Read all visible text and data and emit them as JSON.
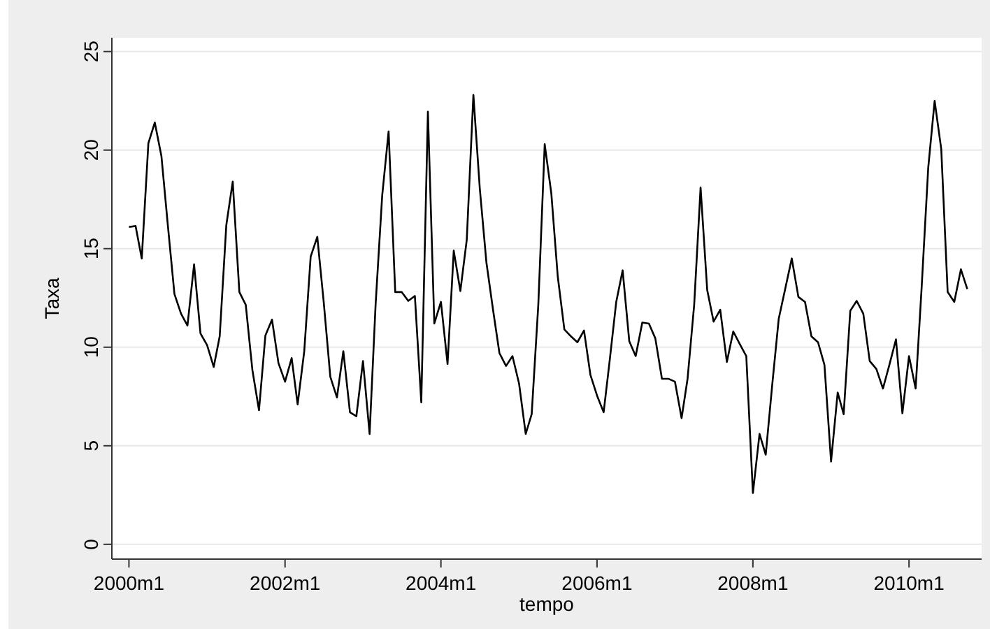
{
  "chart_data": {
    "type": "line",
    "xlabel": "tempo",
    "ylabel": "Taxa",
    "x": [
      "2000-01",
      "2000-02",
      "2000-03",
      "2000-04",
      "2000-05",
      "2000-06",
      "2000-07",
      "2000-08",
      "2000-09",
      "2000-10",
      "2000-11",
      "2000-12",
      "2001-01",
      "2001-02",
      "2001-03",
      "2001-04",
      "2001-05",
      "2001-06",
      "2001-07",
      "2001-08",
      "2001-09",
      "2001-10",
      "2001-11",
      "2001-12",
      "2002-01",
      "2002-02",
      "2002-03",
      "2002-04",
      "2002-05",
      "2002-06",
      "2002-07",
      "2002-08",
      "2002-09",
      "2002-10",
      "2002-11",
      "2002-12",
      "2003-01",
      "2003-02",
      "2003-03",
      "2003-04",
      "2003-05",
      "2003-06",
      "2003-07",
      "2003-08",
      "2003-09",
      "2003-10",
      "2003-11",
      "2003-12",
      "2004-01",
      "2004-02",
      "2004-03",
      "2004-04",
      "2004-05",
      "2004-06",
      "2004-07",
      "2004-08",
      "2004-09",
      "2004-10",
      "2004-11",
      "2004-12",
      "2005-01",
      "2005-02",
      "2005-03",
      "2005-04",
      "2005-05",
      "2005-06",
      "2005-07",
      "2005-08",
      "2005-09",
      "2005-10",
      "2005-11",
      "2005-12",
      "2006-01",
      "2006-02",
      "2006-03",
      "2006-04",
      "2006-05",
      "2006-06",
      "2006-07",
      "2006-08",
      "2006-09",
      "2006-10",
      "2006-11",
      "2006-12",
      "2007-01",
      "2007-02",
      "2007-03",
      "2007-04",
      "2007-05",
      "2007-06",
      "2007-07",
      "2007-08",
      "2007-09",
      "2007-10",
      "2007-11",
      "2007-12",
      "2008-01",
      "2008-02",
      "2008-03",
      "2008-04",
      "2008-05",
      "2008-06",
      "2008-07",
      "2008-08",
      "2008-09",
      "2008-10",
      "2008-11",
      "2008-12",
      "2009-01",
      "2009-02",
      "2009-03",
      "2009-04",
      "2009-05",
      "2009-06",
      "2009-07",
      "2009-08",
      "2009-09",
      "2009-10",
      "2009-11",
      "2009-12",
      "2010-01",
      "2010-02",
      "2010-03",
      "2010-04",
      "2010-05",
      "2010-06",
      "2010-07",
      "2010-08",
      "2010-09",
      "2010-10"
    ],
    "series": [
      {
        "color": "#000000",
        "values": [
          16.1,
          16.15,
          14.5,
          20.35,
          21.4,
          19.7,
          16.2,
          12.7,
          11.7,
          11.1,
          14.2,
          10.7,
          10.1,
          9.0,
          10.55,
          16.2,
          18.4,
          12.8,
          12.15,
          8.85,
          6.8,
          10.6,
          11.4,
          9.2,
          8.25,
          9.45,
          7.1,
          9.8,
          14.6,
          15.6,
          12.3,
          8.5,
          7.45,
          9.8,
          6.7,
          6.5,
          9.3,
          5.6,
          12.15,
          17.7,
          20.95,
          12.8,
          12.8,
          12.35,
          12.6,
          7.2,
          21.95,
          11.2,
          12.3,
          9.15,
          14.9,
          12.85,
          15.45,
          22.8,
          18.05,
          14.3,
          11.9,
          9.7,
          9.05,
          9.55,
          8.15,
          5.6,
          6.6,
          12.15,
          20.3,
          17.8,
          13.6,
          10.9,
          10.55,
          10.25,
          10.85,
          8.6,
          7.55,
          6.7,
          9.3,
          12.3,
          13.9,
          10.3,
          9.55,
          11.25,
          11.2,
          10.45,
          8.4,
          8.4,
          8.25,
          6.4,
          8.4,
          12.15,
          18.1,
          12.9,
          11.3,
          11.9,
          9.25,
          10.8,
          10.15,
          9.55,
          2.6,
          5.6,
          4.55,
          8.15,
          11.45,
          13.0,
          14.5,
          12.55,
          12.3,
          10.55,
          10.25,
          9.1,
          4.2,
          7.7,
          6.6,
          11.85,
          12.35,
          11.7,
          9.3,
          8.9,
          7.9,
          9.1,
          10.4,
          6.65,
          9.55,
          7.9,
          13.0,
          19.1,
          22.5,
          20.05,
          12.8,
          12.3,
          13.95,
          12.95
        ]
      }
    ],
    "xlim": [
      "1999-10-13",
      "2010-12-07"
    ],
    "xticks": [
      {
        "value": "2000-01",
        "label": "2000m1"
      },
      {
        "value": "2002-01",
        "label": "2002m1"
      },
      {
        "value": "2004-01",
        "label": "2004m1"
      },
      {
        "value": "2006-01",
        "label": "2006m1"
      },
      {
        "value": "2008-01",
        "label": "2008m1"
      },
      {
        "value": "2010-01",
        "label": "2010m1"
      }
    ],
    "ylim": [
      -0.75,
      25.7
    ],
    "yticks": [
      0,
      5,
      10,
      15,
      20,
      25
    ],
    "grid": "y",
    "line_style": "solid",
    "marker": "none"
  }
}
